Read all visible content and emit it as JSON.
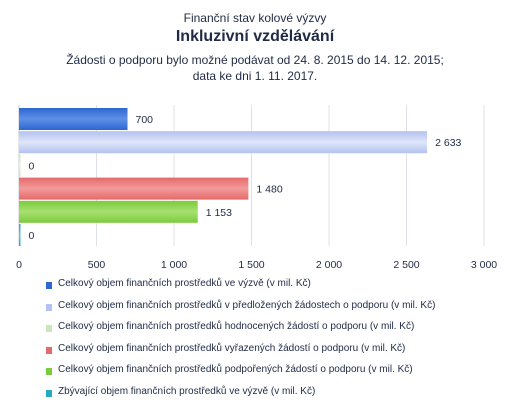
{
  "header": {
    "supertitle": "Finanční stav kolové výzvy",
    "title": "Inkluzivní vzdělávání",
    "subtitle_line1": "Žádosti o podporu bylo možné  podávat od 24. 8. 2015 do 14. 12. 2015;",
    "subtitle_line2": "data ke dni 1. 11. 2017."
  },
  "chart_data": {
    "type": "bar",
    "orientation": "horizontal",
    "xlim": [
      0,
      3000
    ],
    "x_ticks": [
      0,
      500,
      1000,
      1500,
      2000,
      2500,
      3000
    ],
    "x_tick_labels": [
      "0",
      "500",
      "1 000",
      "1 500",
      "2 000",
      "2 500",
      "3 000"
    ],
    "grid": true,
    "legend_position": "bottom",
    "series": [
      {
        "name": "Celkový objem finančních prostředků ve výzvě (v mil. Kč)",
        "value": 700,
        "label": "700",
        "color": "#2e67d1",
        "color_light": "#5d8fe6"
      },
      {
        "name": "Celkový objem finančních prostředků v předložených žádostech o podporu (v mil. Kč)",
        "value": 2633,
        "label": "2 633",
        "color": "#b3c2ee",
        "color_light": "#dfe6fb"
      },
      {
        "name": "Celkový objem finančních prostředků hodnocených žádostí o podporu (v mil. Kč)",
        "value": 0,
        "label": "0",
        "color": "#c9e7b8",
        "color_light": "#e4f3da"
      },
      {
        "name": "Celkový objem finančních prostředků vyřazených žádostí o podporu (v mil. Kč)",
        "value": 1480,
        "label": "1 480",
        "color": "#e56a6a",
        "color_light": "#f49a9a"
      },
      {
        "name": "Celkový objem finančních prostředků podpořených žádostí o podporu (v mil. Kč)",
        "value": 1153,
        "label": "1 153",
        "color": "#7ccb3c",
        "color_light": "#a6e070"
      },
      {
        "name": "Zbývající objem finančních prostředků ve výzvě (v mil. Kč)",
        "value": 0,
        "label": "0",
        "color": "#2aa7c4",
        "color_light": "#5fc6dd"
      }
    ]
  }
}
